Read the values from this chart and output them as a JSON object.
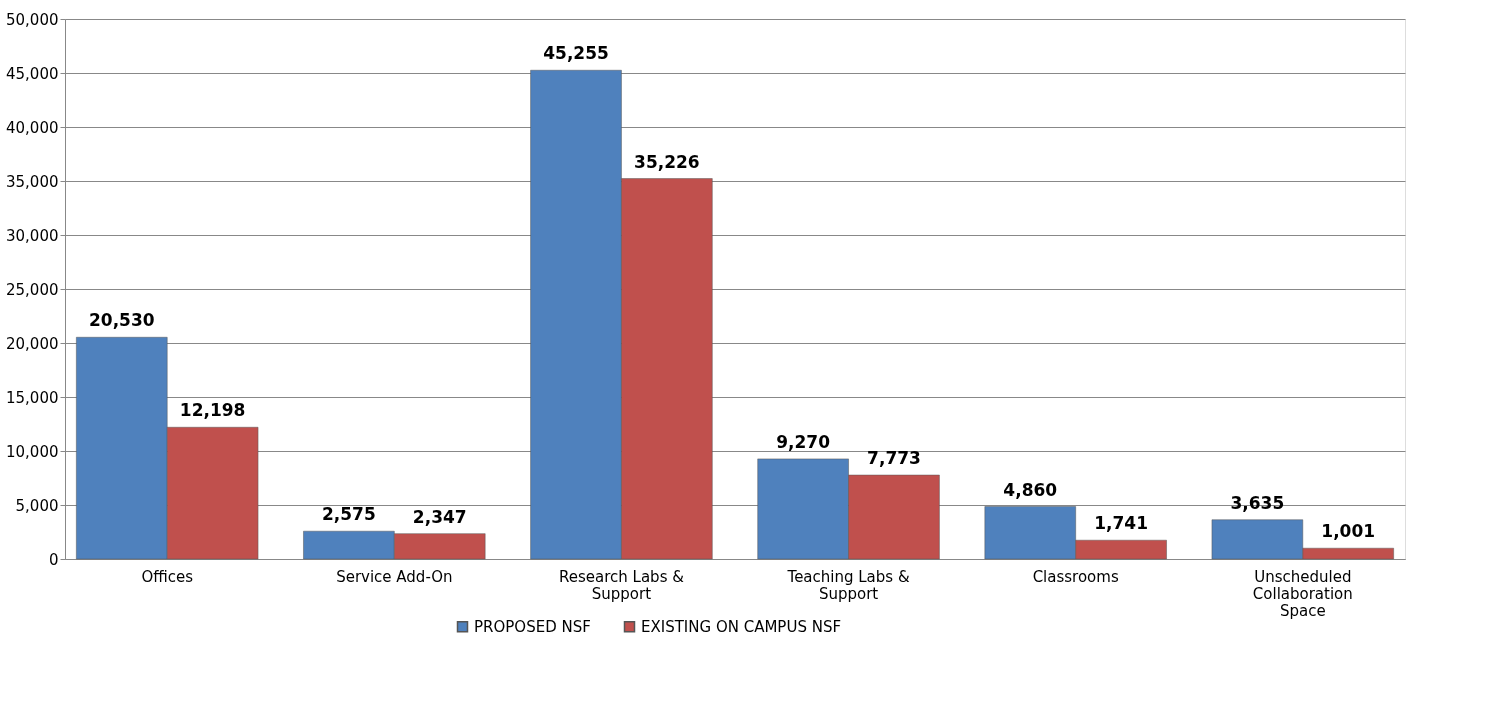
{
  "chart_data": {
    "type": "bar",
    "categories": [
      "Offices",
      "Service Add-On",
      "Research Labs & Support",
      "Teaching Labs & Support",
      "Classrooms",
      "Unscheduled Collaboration Space"
    ],
    "series": [
      {
        "name": "PROPOSED NSF",
        "color": "#4f81bd",
        "values": [
          20530,
          2575,
          45255,
          9270,
          4860,
          3635
        ],
        "value_labels": [
          "20,530",
          "2,575",
          "45,255",
          "9,270",
          "4,860",
          "3,635"
        ]
      },
      {
        "name": "EXISTING ON CAMPUS NSF",
        "color": "#c0504d",
        "values": [
          12198,
          2347,
          35226,
          7773,
          1741,
          1001
        ],
        "value_labels": [
          "12,198",
          "2,347",
          "35,226",
          "7,773",
          "1,741",
          "1,001"
        ]
      }
    ],
    "ylim": [
      0,
      50000
    ],
    "yticks": [
      {
        "value": 0,
        "label": "0"
      },
      {
        "value": 5000,
        "label": "5,000"
      },
      {
        "value": 10000,
        "label": "10,000"
      },
      {
        "value": 15000,
        "label": "15,000"
      },
      {
        "value": 20000,
        "label": "20,000"
      },
      {
        "value": 25000,
        "label": "25,000"
      },
      {
        "value": 30000,
        "label": "30,000"
      },
      {
        "value": 35000,
        "label": "35,000"
      },
      {
        "value": 40000,
        "label": "40,000"
      },
      {
        "value": 45000,
        "label": "45,000"
      },
      {
        "value": 50000,
        "label": "50,000"
      }
    ],
    "grid": "y",
    "legend": "bottom"
  }
}
